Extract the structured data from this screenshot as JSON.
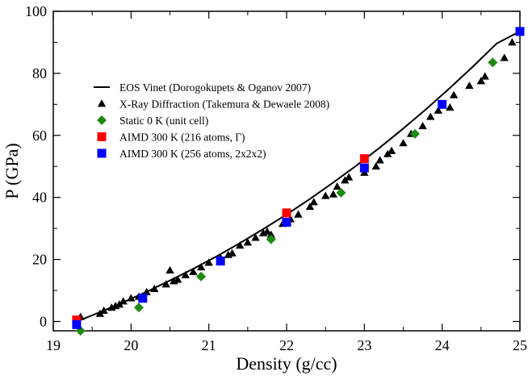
{
  "chart_data": {
    "type": "scatter",
    "xlabel": "Density (g/cc)",
    "ylabel": "P (GPa)",
    "xlim": [
      19,
      25
    ],
    "ylim": [
      -3,
      100
    ],
    "x_ticks": [
      "19",
      "20",
      "21",
      "22",
      "23",
      "24",
      "25"
    ],
    "y_ticks": [
      "0",
      "20",
      "40",
      "60",
      "80",
      "100"
    ],
    "legend_placement": "top-left",
    "grid": false,
    "series": [
      {
        "name": "EOS Vinet (Dorogokupets & Oganov 2007)",
        "kind": "line",
        "color": "#000000",
        "x": [
          19.3,
          19.6,
          19.9,
          20.2,
          20.5,
          20.8,
          21.1,
          21.4,
          21.7,
          22.0,
          22.3,
          22.6,
          22.9,
          23.2,
          23.5,
          23.8,
          24.1,
          24.4,
          24.7,
          25.0
        ],
        "y": [
          0.0,
          3.0,
          6.2,
          9.6,
          13.2,
          17.0,
          21.0,
          25.3,
          29.8,
          34.5,
          39.5,
          44.8,
          50.3,
          56.1,
          62.2,
          68.6,
          75.3,
          82.3,
          89.6,
          93.5
        ]
      },
      {
        "name": "X-Ray Diffraction (Takemura & Dewaele 2008)",
        "kind": "marker",
        "marker": "triangle",
        "color": "#000000",
        "x": [
          19.35,
          19.6,
          19.65,
          19.75,
          19.8,
          19.85,
          19.9,
          20.0,
          20.1,
          20.2,
          20.3,
          20.45,
          20.5,
          20.55,
          20.6,
          20.7,
          20.8,
          20.9,
          21.0,
          21.15,
          21.25,
          21.3,
          21.4,
          21.5,
          21.6,
          21.7,
          21.75,
          21.8,
          21.95,
          22.05,
          22.15,
          22.3,
          22.35,
          22.5,
          22.6,
          22.65,
          22.75,
          22.8,
          23.0,
          23.15,
          23.2,
          23.3,
          23.35,
          23.5,
          23.6,
          23.75,
          23.85,
          23.95,
          24.1,
          24.15,
          24.35,
          24.5,
          24.55,
          24.8,
          24.9
        ],
        "y": [
          1.5,
          2.5,
          3.5,
          4.5,
          5.0,
          5.5,
          6.5,
          7.5,
          8.0,
          9.5,
          10.5,
          12.0,
          16.5,
          13.0,
          13.5,
          15.0,
          16.0,
          17.5,
          19.0,
          20.5,
          21.5,
          22.0,
          24.5,
          25.5,
          27.0,
          28.5,
          29.0,
          28.0,
          31.5,
          33.0,
          34.5,
          37.0,
          38.5,
          40.5,
          41.0,
          43.5,
          45.5,
          46.5,
          48.0,
          50.0,
          52.0,
          54.0,
          55.0,
          57.5,
          60.5,
          63.0,
          66.0,
          68.0,
          69.0,
          73.0,
          76.0,
          77.5,
          79.0,
          85.0,
          90.0
        ]
      },
      {
        "name": "Static 0 K (unit cell)",
        "kind": "marker",
        "marker": "diamond",
        "color": "#1f8a12",
        "x": [
          19.35,
          20.1,
          20.9,
          21.8,
          22.7,
          23.65,
          24.65
        ],
        "y": [
          -3.0,
          4.5,
          14.5,
          26.5,
          41.5,
          60.5,
          83.5
        ]
      },
      {
        "name": "AIMD 300 K (216 atoms, Γ)",
        "kind": "marker",
        "marker": "square",
        "color": "#ff0000",
        "x": [
          19.3,
          22.0,
          23.0
        ],
        "y": [
          0.5,
          35.0,
          52.5
        ]
      },
      {
        "name": "AIMD 300 K (256 atoms, 2x2x2)",
        "kind": "marker",
        "marker": "square",
        "color": "#0000ff",
        "x": [
          19.3,
          20.15,
          21.15,
          22.0,
          23.0,
          24.0,
          25.0
        ],
        "y": [
          -1.0,
          7.5,
          19.5,
          32.0,
          49.5,
          70.0,
          93.5
        ]
      }
    ]
  }
}
